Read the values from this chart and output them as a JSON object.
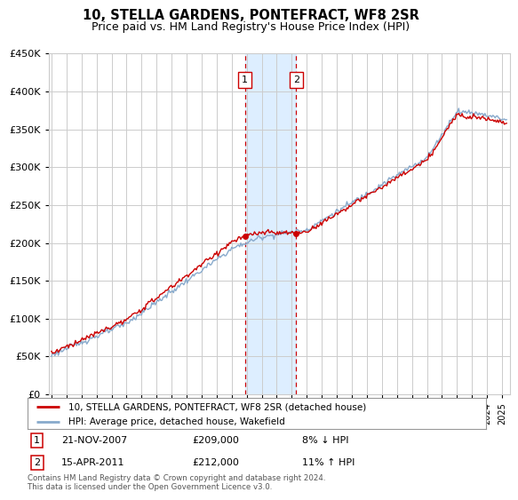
{
  "title": "10, STELLA GARDENS, PONTEFRACT, WF8 2SR",
  "subtitle": "Price paid vs. HM Land Registry's House Price Index (HPI)",
  "footer": "Contains HM Land Registry data © Crown copyright and database right 2024.\nThis data is licensed under the Open Government Licence v3.0.",
  "legend_line1": "10, STELLA GARDENS, PONTEFRACT, WF8 2SR (detached house)",
  "legend_line2": "HPI: Average price, detached house, Wakefield",
  "sale1_label": "1",
  "sale1_date": "21-NOV-2007",
  "sale1_price": "£209,000",
  "sale1_hpi": "8% ↓ HPI",
  "sale2_label": "2",
  "sale2_date": "15-APR-2011",
  "sale2_price": "£212,000",
  "sale2_hpi": "11% ↑ HPI",
  "sale1_year": 2007.89,
  "sale2_year": 2011.29,
  "sale1_price_val": 209000,
  "sale2_price_val": 212000,
  "ylim": [
    0,
    450000
  ],
  "xlim_start": 1994.8,
  "xlim_end": 2025.5,
  "red_color": "#cc0000",
  "blue_color": "#88aacc",
  "shade_color": "#ddeeff",
  "grid_color": "#cccccc",
  "background_color": "#ffffff"
}
